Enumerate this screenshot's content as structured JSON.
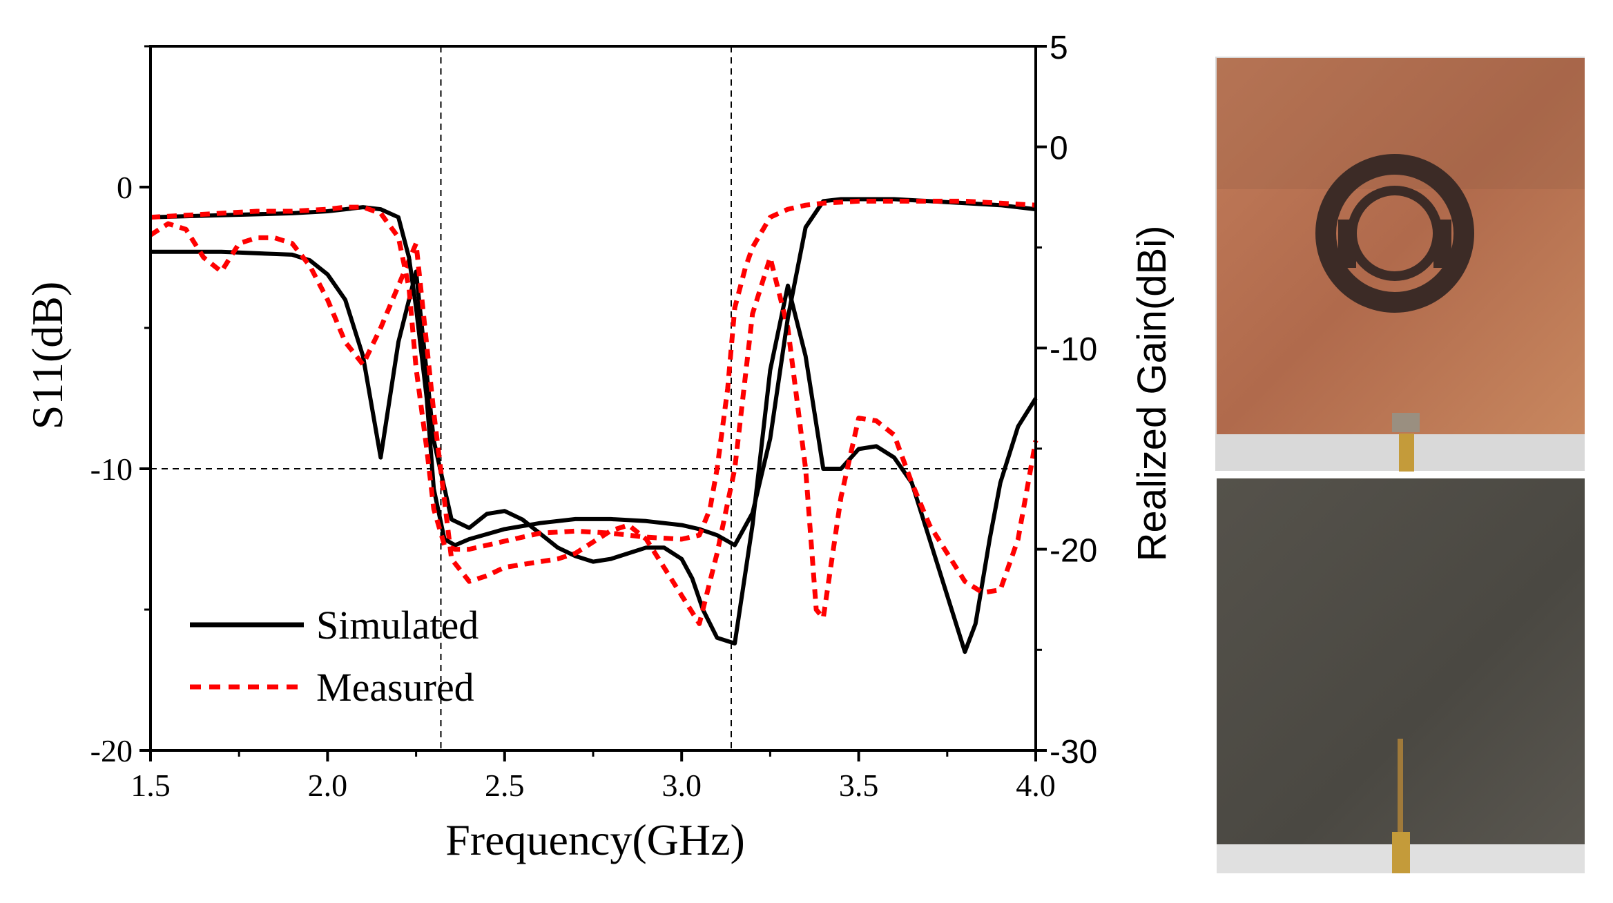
{
  "chart_data": {
    "type": "line",
    "xlabel": "Frequency(GHz)",
    "ylabel_left": "S11(dB)",
    "ylabel_right": "Realized Gain(dBi)",
    "xlim": [
      1.5,
      4.0
    ],
    "ylim_left": [
      -20,
      5
    ],
    "ylim_right": [
      -30,
      5
    ],
    "x_ticks": [
      "1.5",
      "2.0",
      "2.5",
      "3.0",
      "3.5",
      "4.0"
    ],
    "y_left_ticks": [
      {
        "value": 0,
        "label": "0"
      },
      {
        "value": -10,
        "label": "-10"
      },
      {
        "value": -20,
        "label": "-20"
      }
    ],
    "y_right_ticks": [
      {
        "value": 5,
        "label": "5"
      },
      {
        "value": 0,
        "label": "0"
      },
      {
        "value": -10,
        "label": "-10"
      },
      {
        "value": -20,
        "label": "-20"
      },
      {
        "value": -30,
        "label": "-30"
      }
    ],
    "reference_lines": {
      "horizontal_s11": -10,
      "vertical_ghz": [
        2.32,
        3.14
      ]
    },
    "legend": [
      {
        "name": "Simulated",
        "color": "#000000",
        "style": "solid"
      },
      {
        "name": "Measured",
        "color": "#ff0000",
        "style": "dashed"
      }
    ],
    "series": [
      {
        "name": "Simulated S11",
        "axis": "left",
        "color": "#000000",
        "style": "solid",
        "x": [
          1.5,
          1.7,
          1.9,
          1.95,
          2.0,
          2.05,
          2.1,
          2.15,
          2.2,
          2.25,
          2.3,
          2.35,
          2.4,
          2.45,
          2.5,
          2.55,
          2.6,
          2.65,
          2.7,
          2.75,
          2.8,
          2.85,
          2.9,
          2.95,
          3.0,
          3.03,
          3.06,
          3.1,
          3.15,
          3.2,
          3.25,
          3.3,
          3.35,
          3.4,
          3.45,
          3.5,
          3.55,
          3.6,
          3.65,
          3.7,
          3.75,
          3.8,
          3.83,
          3.87,
          3.9,
          3.95,
          4.0
        ],
        "y": [
          -2.3,
          -2.3,
          -2.4,
          -2.6,
          -3.1,
          -4,
          -6,
          -9.6,
          -5.5,
          -3,
          -9,
          -11.8,
          -12.1,
          -11.6,
          -11.5,
          -11.8,
          -12.3,
          -12.8,
          -13.1,
          -13.3,
          -13.2,
          -13,
          -12.8,
          -12.8,
          -13.2,
          -13.9,
          -15,
          -16,
          -16.2,
          -12,
          -6.5,
          -3.5,
          -6,
          -10,
          -10,
          -9.3,
          -9.2,
          -9.6,
          -10.5,
          -12.5,
          -14.5,
          -16.5,
          -15.5,
          -12.5,
          -10.5,
          -8.5,
          -7.5
        ]
      },
      {
        "name": "Measured S11",
        "axis": "left",
        "color": "#ff0000",
        "style": "dashed",
        "x": [
          1.5,
          1.55,
          1.6,
          1.65,
          1.7,
          1.75,
          1.8,
          1.85,
          1.9,
          1.95,
          2.0,
          2.05,
          2.1,
          2.15,
          2.2,
          2.25,
          2.3,
          2.35,
          2.4,
          2.45,
          2.5,
          2.55,
          2.6,
          2.65,
          2.7,
          2.75,
          2.8,
          2.85,
          2.9,
          2.95,
          3.0,
          3.05,
          3.1,
          3.15,
          3.2,
          3.25,
          3.3,
          3.35,
          3.38,
          3.4,
          3.45,
          3.5,
          3.55,
          3.6,
          3.65,
          3.7,
          3.75,
          3.8,
          3.85,
          3.9,
          3.95,
          4.0
        ],
        "y": [
          -1.7,
          -1.3,
          -1.5,
          -2.5,
          -3,
          -2,
          -1.8,
          -1.8,
          -2,
          -2.8,
          -4,
          -5.5,
          -6.3,
          -5,
          -3.5,
          -2,
          -8,
          -13.2,
          -14,
          -13.8,
          -13.5,
          -13.4,
          -13.3,
          -13.2,
          -13,
          -12.6,
          -12.2,
          -12,
          -12.5,
          -13.5,
          -14.5,
          -15.5,
          -13,
          -10,
          -4.5,
          -2.5,
          -5,
          -10,
          -15,
          -15.3,
          -11,
          -8.2,
          -8.3,
          -8.8,
          -10.5,
          -12,
          -13,
          -14,
          -14.4,
          -14.3,
          -12.5,
          -9
        ]
      },
      {
        "name": "Simulated Gain",
        "axis": "right",
        "color": "#000000",
        "style": "solid",
        "x": [
          1.5,
          1.7,
          1.9,
          2.0,
          2.05,
          2.1,
          2.15,
          2.2,
          2.23,
          2.25,
          2.28,
          2.3,
          2.33,
          2.36,
          2.4,
          2.5,
          2.6,
          2.7,
          2.8,
          2.9,
          3.0,
          3.05,
          3.1,
          3.15,
          3.2,
          3.25,
          3.3,
          3.35,
          3.4,
          3.45,
          3.5,
          3.6,
          3.7,
          3.8,
          3.9,
          4.0
        ],
        "y": [
          -3.5,
          -3.4,
          -3.3,
          -3.2,
          -3.1,
          -3.0,
          -3.1,
          -3.5,
          -5.5,
          -8,
          -12.5,
          -17,
          -19.5,
          -19.8,
          -19.5,
          -19.0,
          -18.7,
          -18.5,
          -18.5,
          -18.6,
          -18.8,
          -19.0,
          -19.3,
          -19.8,
          -18.2,
          -14.5,
          -8.5,
          -4,
          -2.7,
          -2.6,
          -2.6,
          -2.6,
          -2.7,
          -2.8,
          -2.9,
          -3.1
        ]
      },
      {
        "name": "Measured Gain",
        "axis": "right",
        "color": "#ff0000",
        "style": "dashed",
        "x": [
          1.5,
          1.6,
          1.7,
          1.8,
          1.9,
          2.0,
          2.05,
          2.1,
          2.15,
          2.2,
          2.23,
          2.25,
          2.28,
          2.3,
          2.33,
          2.36,
          2.4,
          2.5,
          2.6,
          2.7,
          2.8,
          2.9,
          3.0,
          3.05,
          3.08,
          3.1,
          3.13,
          3.15,
          3.18,
          3.2,
          3.25,
          3.3,
          3.35,
          3.4,
          3.5,
          3.6,
          3.7,
          3.8,
          3.9,
          4.0
        ],
        "y": [
          -3.5,
          -3.4,
          -3.3,
          -3.2,
          -3.2,
          -3.1,
          -3.0,
          -3.0,
          -3.3,
          -4.5,
          -7,
          -11,
          -15,
          -18,
          -19.8,
          -20.0,
          -20.0,
          -19.6,
          -19.2,
          -19.1,
          -19.2,
          -19.4,
          -19.5,
          -19.3,
          -18.0,
          -16.0,
          -12.0,
          -8.0,
          -6.0,
          -5.0,
          -3.5,
          -3.1,
          -2.9,
          -2.8,
          -2.7,
          -2.7,
          -2.7,
          -2.7,
          -2.8,
          -2.9
        ]
      }
    ]
  },
  "photos": [
    {
      "name": "antenna-top-view",
      "color": "#b56f4f",
      "pattern_color": "#3c2b26"
    },
    {
      "name": "antenna-bottom-view",
      "color": "#4f4c46"
    }
  ]
}
